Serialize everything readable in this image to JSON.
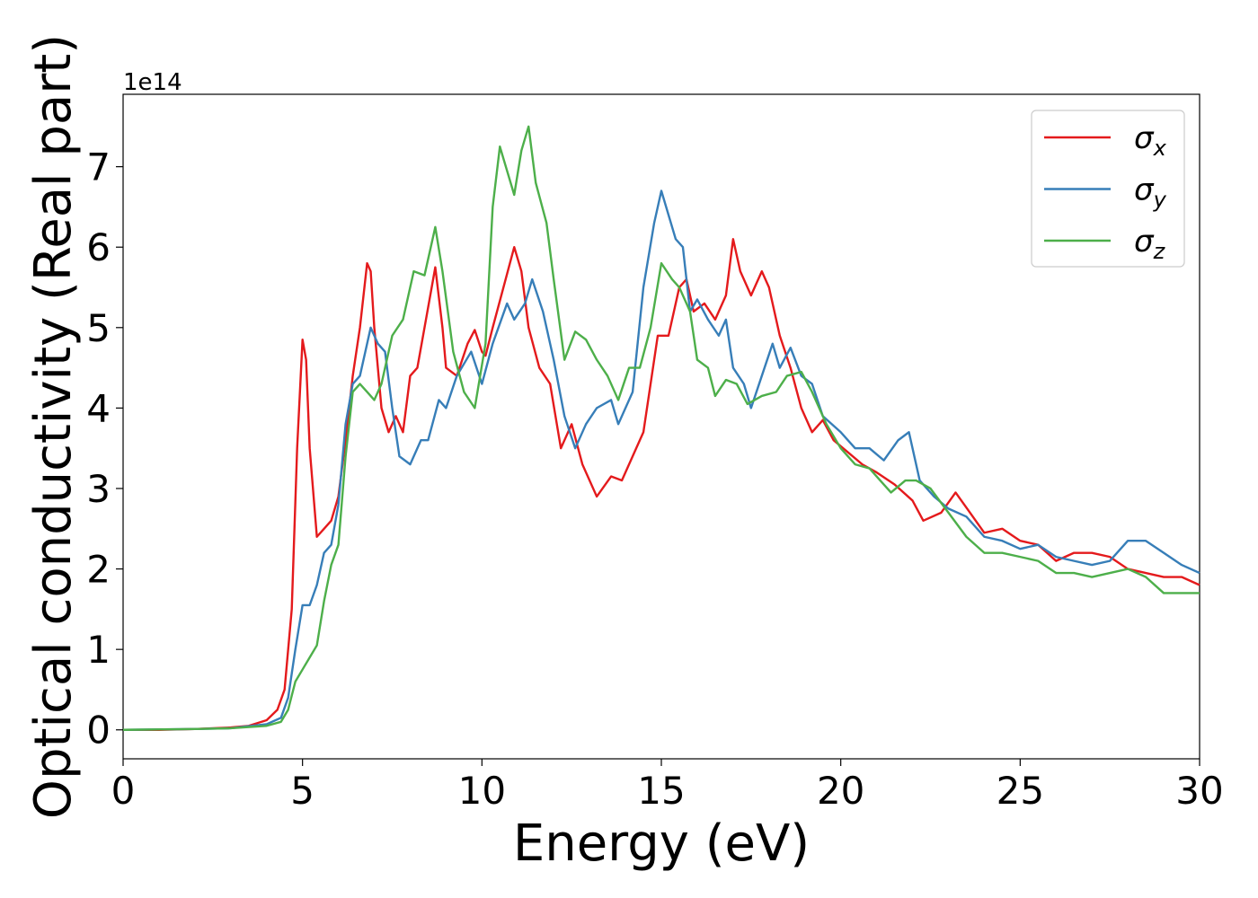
{
  "chart_data": {
    "type": "line",
    "xlabel": "Energy (eV)",
    "ylabel": "Optical conductivity (Real part)",
    "offset_text": "1e14",
    "xlim": [
      0,
      30
    ],
    "xticks": [
      0,
      5,
      10,
      15,
      20,
      25,
      30
    ],
    "ylim": [
      -0.36,
      7.9
    ],
    "yticks": [
      0,
      1,
      2,
      3,
      4,
      5,
      6,
      7
    ],
    "legend": "upper right",
    "series": [
      {
        "name": "σx",
        "color": "#e41a1c",
        "x": [
          0,
          1,
          2,
          3,
          3.5,
          4,
          4.3,
          4.5,
          4.7,
          4.85,
          5.0,
          5.1,
          5.2,
          5.4,
          5.6,
          5.8,
          6.0,
          6.2,
          6.4,
          6.6,
          6.8,
          6.9,
          7.0,
          7.2,
          7.4,
          7.6,
          7.8,
          8.0,
          8.2,
          8.4,
          8.7,
          8.9,
          9.0,
          9.3,
          9.6,
          9.8,
          10.0,
          10.1,
          10.3,
          10.6,
          10.9,
          11.1,
          11.3,
          11.6,
          11.9,
          12.2,
          12.5,
          12.8,
          13.2,
          13.6,
          13.9,
          14.2,
          14.5,
          14.7,
          14.9,
          15.2,
          15.5,
          15.7,
          15.9,
          16.2,
          16.5,
          16.8,
          17.0,
          17.2,
          17.5,
          17.8,
          18.0,
          18.3,
          18.6,
          18.9,
          19.2,
          19.5,
          19.8,
          20.2,
          20.6,
          21.0,
          21.5,
          22.0,
          22.3,
          22.8,
          23.2,
          23.6,
          24.0,
          24.5,
          25.0,
          25.5,
          26.0,
          26.5,
          27.0,
          27.5,
          28.0,
          28.5,
          29.0,
          29.5,
          30.0
        ],
        "values": [
          0,
          0,
          0.01,
          0.03,
          0.05,
          0.12,
          0.25,
          0.5,
          1.5,
          3.5,
          4.85,
          4.6,
          3.5,
          2.4,
          2.5,
          2.6,
          2.9,
          3.6,
          4.4,
          5.0,
          5.8,
          5.7,
          5.0,
          4.0,
          3.7,
          3.9,
          3.7,
          4.4,
          4.5,
          5.0,
          5.75,
          5.0,
          4.5,
          4.4,
          4.8,
          4.97,
          4.7,
          4.65,
          5.0,
          5.5,
          6.0,
          5.7,
          5.0,
          4.5,
          4.3,
          3.5,
          3.8,
          3.3,
          2.9,
          3.15,
          3.1,
          3.4,
          3.7,
          4.3,
          4.9,
          4.9,
          5.5,
          5.6,
          5.2,
          5.3,
          5.1,
          5.4,
          6.1,
          5.7,
          5.4,
          5.7,
          5.5,
          4.9,
          4.5,
          4.0,
          3.7,
          3.85,
          3.6,
          3.45,
          3.3,
          3.2,
          3.05,
          2.85,
          2.6,
          2.7,
          2.95,
          2.7,
          2.45,
          2.5,
          2.35,
          2.3,
          2.1,
          2.2,
          2.2,
          2.15,
          2.0,
          1.95,
          1.9,
          1.9,
          1.8
        ]
      },
      {
        "name": "σy",
        "color": "#377eb8",
        "x": [
          0,
          2,
          3,
          4,
          4.4,
          4.6,
          4.8,
          5.0,
          5.2,
          5.4,
          5.6,
          5.8,
          6.0,
          6.2,
          6.4,
          6.6,
          6.9,
          7.1,
          7.3,
          7.5,
          7.7,
          8.0,
          8.3,
          8.5,
          8.8,
          9.0,
          9.3,
          9.7,
          10.0,
          10.3,
          10.7,
          10.9,
          11.2,
          11.4,
          11.7,
          12.0,
          12.3,
          12.6,
          12.9,
          13.2,
          13.6,
          13.8,
          14.2,
          14.5,
          14.8,
          15.0,
          15.2,
          15.4,
          15.6,
          15.8,
          16.0,
          16.3,
          16.6,
          16.8,
          17.0,
          17.3,
          17.5,
          17.8,
          18.1,
          18.3,
          18.6,
          18.9,
          19.2,
          19.5,
          20.0,
          20.4,
          20.8,
          21.2,
          21.6,
          21.9,
          22.2,
          22.6,
          23.0,
          23.5,
          24.0,
          24.5,
          25.0,
          25.5,
          26.0,
          26.5,
          27.0,
          27.5,
          28.0,
          28.5,
          29.0,
          29.5,
          30.0
        ],
        "values": [
          0,
          0.01,
          0.02,
          0.07,
          0.15,
          0.4,
          1.0,
          1.55,
          1.55,
          1.8,
          2.2,
          2.3,
          2.8,
          3.8,
          4.3,
          4.4,
          5.0,
          4.8,
          4.7,
          4.0,
          3.4,
          3.3,
          3.6,
          3.6,
          4.1,
          4.0,
          4.4,
          4.7,
          4.3,
          4.8,
          5.3,
          5.1,
          5.3,
          5.6,
          5.2,
          4.6,
          3.9,
          3.5,
          3.8,
          4.0,
          4.1,
          3.8,
          4.2,
          5.5,
          6.3,
          6.7,
          6.4,
          6.1,
          6.0,
          5.2,
          5.35,
          5.1,
          4.9,
          5.1,
          4.5,
          4.3,
          4.0,
          4.4,
          4.8,
          4.5,
          4.75,
          4.4,
          4.3,
          3.9,
          3.7,
          3.5,
          3.5,
          3.35,
          3.6,
          3.7,
          3.1,
          2.9,
          2.75,
          2.65,
          2.4,
          2.35,
          2.25,
          2.3,
          2.15,
          2.1,
          2.05,
          2.1,
          2.35,
          2.35,
          2.2,
          2.05,
          1.95
        ]
      },
      {
        "name": "σz",
        "color": "#4daf4a",
        "x": [
          0,
          2,
          3,
          4,
          4.4,
          4.6,
          4.8,
          5.0,
          5.2,
          5.4,
          5.6,
          5.8,
          6.0,
          6.2,
          6.4,
          6.6,
          6.8,
          7.0,
          7.2,
          7.5,
          7.8,
          8.1,
          8.4,
          8.7,
          8.9,
          9.2,
          9.5,
          9.8,
          10.1,
          10.3,
          10.5,
          10.8,
          10.9,
          11.1,
          11.3,
          11.5,
          11.8,
          12.0,
          12.3,
          12.6,
          12.9,
          13.2,
          13.5,
          13.8,
          14.1,
          14.4,
          14.7,
          15.0,
          15.3,
          15.5,
          15.8,
          16.0,
          16.3,
          16.5,
          16.8,
          17.1,
          17.4,
          17.8,
          18.2,
          18.5,
          18.9,
          19.2,
          19.6,
          20.0,
          20.4,
          20.8,
          21.1,
          21.4,
          21.8,
          22.1,
          22.5,
          23.0,
          23.5,
          24.0,
          24.5,
          25.0,
          25.5,
          26.0,
          26.5,
          27.0,
          27.5,
          28.0,
          28.5,
          29.0,
          29.5,
          30.0
        ],
        "values": [
          0,
          0.01,
          0.02,
          0.05,
          0.1,
          0.25,
          0.6,
          0.75,
          0.9,
          1.05,
          1.6,
          2.05,
          2.3,
          3.4,
          4.2,
          4.3,
          4.2,
          4.1,
          4.3,
          4.9,
          5.1,
          5.7,
          5.65,
          6.25,
          5.7,
          4.7,
          4.2,
          4.0,
          4.8,
          6.5,
          7.25,
          6.8,
          6.65,
          7.2,
          7.5,
          6.8,
          6.3,
          5.6,
          4.6,
          4.95,
          4.85,
          4.6,
          4.4,
          4.1,
          4.5,
          4.5,
          5.0,
          5.8,
          5.6,
          5.5,
          5.2,
          4.6,
          4.5,
          4.15,
          4.35,
          4.3,
          4.05,
          4.15,
          4.2,
          4.4,
          4.45,
          4.2,
          3.8,
          3.5,
          3.3,
          3.25,
          3.1,
          2.95,
          3.1,
          3.1,
          3.0,
          2.7,
          2.4,
          2.2,
          2.2,
          2.15,
          2.1,
          1.95,
          1.95,
          1.9,
          1.95,
          2.0,
          1.9,
          1.7,
          1.7,
          1.7
        ]
      }
    ]
  }
}
